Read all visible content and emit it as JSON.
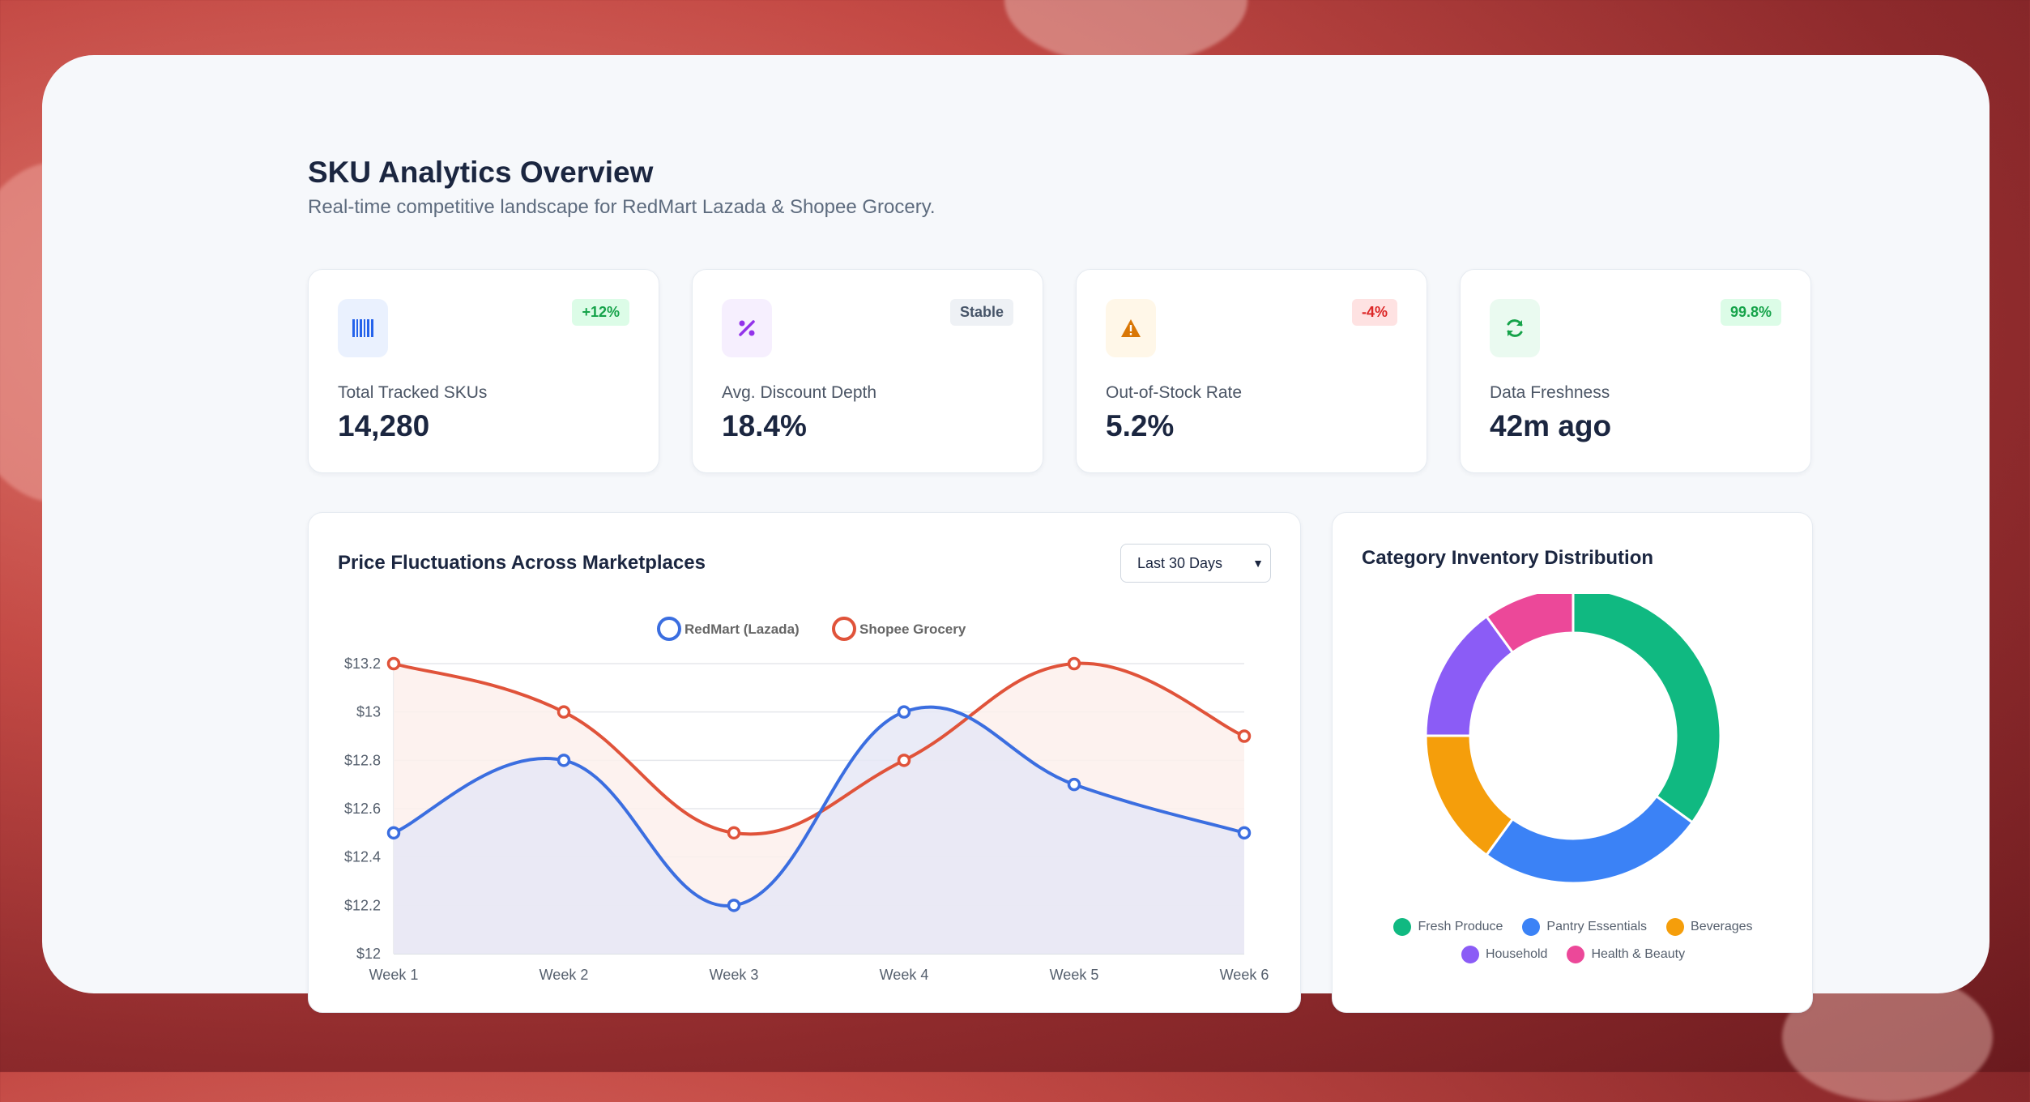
{
  "header": {
    "title": "SKU Analytics Overview",
    "subtitle": "Real-time competitive landscape for RedMart Lazada & Shopee Grocery."
  },
  "kpis": [
    {
      "label": "Total Tracked SKUs",
      "value": "14,280",
      "badge": "+12%",
      "icon": "barcode-icon",
      "badge_color": "#16a34a",
      "badge_bg": "#dcfce7",
      "icon_color": "#2563eb",
      "icon_bg": "#eaf1fe"
    },
    {
      "label": "Avg. Discount Depth",
      "value": "18.4%",
      "badge": "Stable",
      "icon": "percent-icon",
      "badge_color": "#475569",
      "badge_bg": "#eef1f5",
      "icon_color": "#9333ea",
      "icon_bg": "#f6effe"
    },
    {
      "label": "Out-of-Stock Rate",
      "value": "5.2%",
      "badge": "-4%",
      "icon": "warning-icon",
      "badge_color": "#dc2626",
      "badge_bg": "#fee2e2",
      "icon_color": "#d97706",
      "icon_bg": "#fff7e8"
    },
    {
      "label": "Data Freshness",
      "value": "42m ago",
      "badge": "99.8%",
      "icon": "refresh-icon",
      "badge_color": "#16a34a",
      "badge_bg": "#dcfce7",
      "icon_color": "#16a34a",
      "icon_bg": "#eafaf0"
    }
  ],
  "price_chart": {
    "title": "Price Fluctuations Across Marketplaces",
    "range_selected": "Last 30 Days"
  },
  "category_chart": {
    "title": "Category Inventory Distribution"
  },
  "chart_data": [
    {
      "type": "line",
      "title": "Price Fluctuations Across Marketplaces",
      "categories": [
        "Week 1",
        "Week 2",
        "Week 3",
        "Week 4",
        "Week 5",
        "Week 6"
      ],
      "series": [
        {
          "name": "RedMart (Lazada)",
          "values": [
            12.5,
            12.8,
            12.2,
            13.0,
            12.7,
            12.5
          ],
          "color": "#3b6ee0",
          "fill": "#e6e8f6"
        },
        {
          "name": "Shopee Grocery",
          "values": [
            13.2,
            13.0,
            12.5,
            12.8,
            13.2,
            12.9
          ],
          "color": "#e0533a",
          "fill": "#fdf0ec"
        }
      ],
      "ylim": [
        12,
        13.2
      ],
      "yticks": [
        12,
        12.2,
        12.4,
        12.6,
        12.8,
        13,
        13.2
      ],
      "ytick_labels": [
        "$12",
        "$12.2",
        "$12.4",
        "$12.6",
        "$12.8",
        "$13",
        "$13.2"
      ],
      "legend": "top-center",
      "grid": true
    },
    {
      "type": "pie",
      "title": "Category Inventory Distribution",
      "labels": [
        "Fresh Produce",
        "Pantry Essentials",
        "Beverages",
        "Household",
        "Health & Beauty"
      ],
      "values": [
        35,
        25,
        15,
        15,
        10
      ],
      "colors": [
        "#10b981",
        "#3b82f6",
        "#f59e0b",
        "#8b5cf6",
        "#ec4899"
      ],
      "legend": "bottom"
    }
  ]
}
